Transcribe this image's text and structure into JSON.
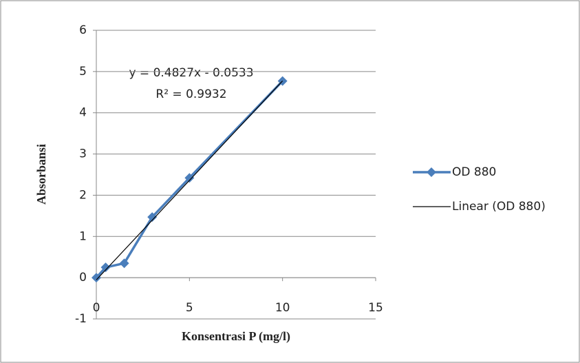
{
  "chart_data": {
    "type": "line",
    "x_label": "Konsentrasi P (mg/l)",
    "y_label": "Absorbansi",
    "xlim": [
      0,
      15
    ],
    "xticks": [
      0,
      5,
      10,
      15
    ],
    "ylim": [
      -1,
      6
    ],
    "yticks": [
      -1,
      0,
      1,
      2,
      3,
      4,
      5,
      6
    ],
    "grid": true,
    "legend": "right",
    "series": [
      {
        "name": "OD 880",
        "color": "#4a7ebb",
        "marker": "diamond",
        "x": [
          0,
          0.5,
          1.5,
          3,
          5,
          10
        ],
        "values": [
          0,
          0.25,
          0.35,
          1.47,
          2.42,
          4.77
        ]
      },
      {
        "name": "Linear (OD 880)",
        "color": "#000000",
        "x": [
          0,
          10
        ],
        "values": [
          -0.0533,
          4.7737
        ]
      }
    ],
    "annotations": [
      "y = 0.4827x - 0.0533",
      "R² = 0.9932"
    ]
  }
}
